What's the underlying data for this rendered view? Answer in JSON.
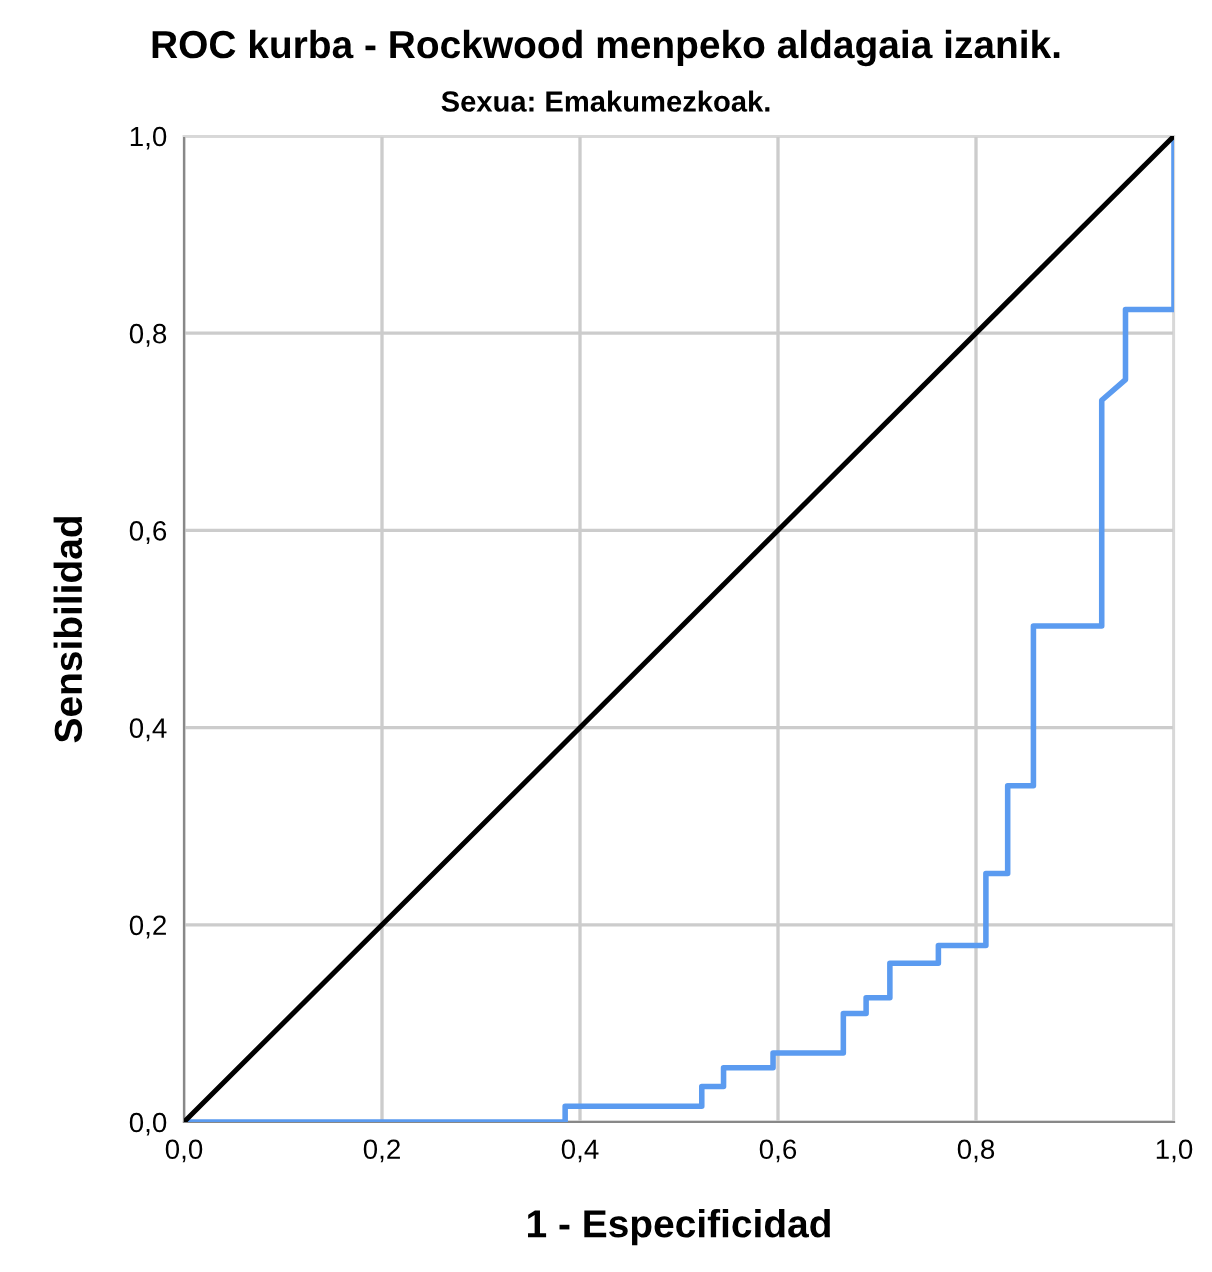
{
  "chart_data": {
    "type": "line",
    "title": "ROC kurba - Rockwood menpeko aldagaia izanik.",
    "subtitle": "Sexua: Emakumezkoak.",
    "xlabel": "1 - Especificidad",
    "ylabel": "Sensibilidad",
    "series": [
      {
        "color": "#5b9bf0",
        "x": [
          0,
          0.385,
          0.385,
          0.523,
          0.523,
          0.545,
          0.545,
          0.595,
          0.595,
          0.666,
          0.666,
          0.689,
          0.689,
          0.713,
          0.713,
          0.762,
          0.762,
          0.81,
          0.81,
          0.832,
          0.832,
          0.858,
          0.858,
          0.927,
          0.927,
          0.951,
          0.951,
          1.0,
          1.0
        ],
        "values": [
          0,
          0,
          0.016,
          0.016,
          0.036,
          0.036,
          0.055,
          0.055,
          0.07,
          0.07,
          0.11,
          0.11,
          0.126,
          0.126,
          0.161,
          0.161,
          0.179,
          0.179,
          0.252,
          0.252,
          0.341,
          0.341,
          0.503,
          0.503,
          0.732,
          0.753,
          0.824,
          0.824,
          1.0
        ]
      },
      {
        "color": "#000000",
        "x": [
          0,
          1.0
        ],
        "values": [
          0,
          1.0
        ]
      }
    ],
    "xlim": [
      0,
      1.0
    ],
    "ylim": [
      0,
      1.0
    ],
    "xticks": [
      {
        "value": 0,
        "label": "0,0"
      },
      {
        "value": 0.2,
        "label": "0,2"
      },
      {
        "value": 0.4,
        "label": "0,4"
      },
      {
        "value": 0.6,
        "label": "0,6"
      },
      {
        "value": 0.8,
        "label": "0,8"
      },
      {
        "value": 1.0,
        "label": "1,0"
      }
    ],
    "yticks": [
      {
        "value": 0,
        "label": "0,0"
      },
      {
        "value": 0.2,
        "label": "0,2"
      },
      {
        "value": 0.4,
        "label": "0,4"
      },
      {
        "value": 0.6,
        "label": "0,6"
      },
      {
        "value": 0.8,
        "label": "0,8"
      },
      {
        "value": 1.0,
        "label": "1,0"
      }
    ],
    "grid": true,
    "marker": "none",
    "line_style": "solid",
    "legend": false
  }
}
